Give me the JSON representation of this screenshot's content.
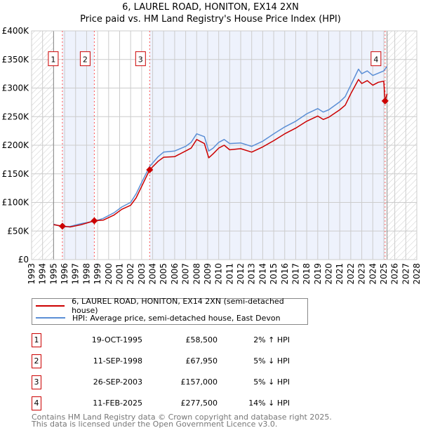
{
  "chart_data": {
    "type": "line",
    "title": "6, LAUREL ROAD, HONITON, EX14 2XN",
    "subtitle": "Price paid vs. HM Land Registry's House Price Index (HPI)",
    "xlim": [
      1993,
      2028
    ],
    "ylim": [
      0,
      400000
    ],
    "x_ticks": [
      "1993",
      "1994",
      "1995",
      "1996",
      "1997",
      "1998",
      "1999",
      "2000",
      "2001",
      "2002",
      "2003",
      "2004",
      "2005",
      "2006",
      "2007",
      "2008",
      "2009",
      "2010",
      "2011",
      "2012",
      "2013",
      "2014",
      "2015",
      "2016",
      "2017",
      "2018",
      "2019",
      "2020",
      "2021",
      "2022",
      "2023",
      "2024",
      "2025",
      "2026",
      "2027",
      "2028"
    ],
    "y_ticks": [
      {
        "v": 0,
        "label": "£0"
      },
      {
        "v": 50000,
        "label": "£50K"
      },
      {
        "v": 100000,
        "label": "£100K"
      },
      {
        "v": 150000,
        "label": "£150K"
      },
      {
        "v": 200000,
        "label": "£200K"
      },
      {
        "v": 250000,
        "label": "£250K"
      },
      {
        "v": 300000,
        "label": "£300K"
      },
      {
        "v": 350000,
        "label": "£350K"
      },
      {
        "v": 400000,
        "label": "£400K"
      }
    ],
    "grid": true,
    "data_range": [
      1995.0,
      2025.3
    ],
    "colors": {
      "price": "#cc0000",
      "hpi": "#5b8fd6",
      "band": "#eef2fc",
      "marker_line": "#ff5555"
    },
    "series": [
      {
        "name": "6, LAUREL ROAD, HONITON, EX14 2XN (semi-detached house)",
        "key": "price",
        "points": [
          [
            1995.0,
            61000
          ],
          [
            1995.8,
            58500
          ],
          [
            1996.5,
            57000
          ],
          [
            1997.5,
            61000
          ],
          [
            1998.7,
            67950
          ],
          [
            1999.5,
            69000
          ],
          [
            2000.5,
            78000
          ],
          [
            2001.2,
            88000
          ],
          [
            2002,
            95000
          ],
          [
            2002.5,
            108000
          ],
          [
            2003,
            128000
          ],
          [
            2003.73,
            157000
          ],
          [
            2004.5,
            172000
          ],
          [
            2005,
            179000
          ],
          [
            2006,
            180000
          ],
          [
            2007,
            190000
          ],
          [
            2007.5,
            195000
          ],
          [
            2008,
            210000
          ],
          [
            2008.7,
            203000
          ],
          [
            2009.1,
            178000
          ],
          [
            2009.5,
            185000
          ],
          [
            2010,
            195000
          ],
          [
            2010.5,
            200000
          ],
          [
            2011,
            192000
          ],
          [
            2012,
            194000
          ],
          [
            2013,
            188000
          ],
          [
            2014,
            197000
          ],
          [
            2015,
            208000
          ],
          [
            2016,
            220000
          ],
          [
            2017,
            230000
          ],
          [
            2018,
            242000
          ],
          [
            2019,
            251000
          ],
          [
            2019.5,
            245000
          ],
          [
            2020,
            249000
          ],
          [
            2021,
            262000
          ],
          [
            2021.5,
            270000
          ],
          [
            2022,
            290000
          ],
          [
            2022.7,
            315000
          ],
          [
            2023,
            308000
          ],
          [
            2023.5,
            313000
          ],
          [
            2024,
            305000
          ],
          [
            2024.5,
            310000
          ],
          [
            2025.0,
            312000
          ],
          [
            2025.12,
            277500
          ],
          [
            2025.3,
            290000
          ]
        ]
      },
      {
        "name": "HPI: Average price, semi-detached house, East Devon",
        "key": "hpi",
        "points": [
          [
            1995.0,
            62000
          ],
          [
            1995.8,
            57000
          ],
          [
            1996.5,
            58000
          ],
          [
            1997.5,
            63000
          ],
          [
            1998.7,
            67000
          ],
          [
            1999.5,
            72000
          ],
          [
            2000.5,
            82000
          ],
          [
            2001.2,
            92000
          ],
          [
            2002,
            100000
          ],
          [
            2002.5,
            115000
          ],
          [
            2003,
            135000
          ],
          [
            2003.73,
            163000
          ],
          [
            2004.5,
            180000
          ],
          [
            2005,
            188000
          ],
          [
            2006,
            190000
          ],
          [
            2007,
            198000
          ],
          [
            2007.5,
            205000
          ],
          [
            2008,
            220000
          ],
          [
            2008.7,
            215000
          ],
          [
            2009.1,
            190000
          ],
          [
            2009.5,
            195000
          ],
          [
            2010,
            205000
          ],
          [
            2010.5,
            210000
          ],
          [
            2011,
            203000
          ],
          [
            2012,
            204000
          ],
          [
            2013,
            198000
          ],
          [
            2014,
            207000
          ],
          [
            2015,
            220000
          ],
          [
            2016,
            232000
          ],
          [
            2017,
            242000
          ],
          [
            2018,
            255000
          ],
          [
            2019,
            264000
          ],
          [
            2019.5,
            258000
          ],
          [
            2020,
            262000
          ],
          [
            2021,
            276000
          ],
          [
            2021.5,
            285000
          ],
          [
            2022,
            305000
          ],
          [
            2022.7,
            333000
          ],
          [
            2023,
            325000
          ],
          [
            2023.5,
            330000
          ],
          [
            2024,
            322000
          ],
          [
            2024.5,
            326000
          ],
          [
            2025.0,
            330000
          ],
          [
            2025.3,
            338000
          ]
        ]
      }
    ],
    "sales": [
      {
        "n": "1",
        "x": 1995.8,
        "y": 58500
      },
      {
        "n": "2",
        "x": 1998.7,
        "y": 67950
      },
      {
        "n": "3",
        "x": 2003.73,
        "y": 157000
      },
      {
        "n": "4",
        "x": 2025.12,
        "y": 277500
      }
    ],
    "marker_label_value": 355000
  },
  "legend": {
    "price": "6, LAUREL ROAD, HONITON, EX14 2XN (semi-detached house)",
    "hpi": "HPI: Average price, semi-detached house, East Devon"
  },
  "table": [
    {
      "n": "1",
      "date": "19-OCT-1995",
      "price": "£58,500",
      "hpi": "2% ↑ HPI"
    },
    {
      "n": "2",
      "date": "11-SEP-1998",
      "price": "£67,950",
      "hpi": "5% ↓ HPI"
    },
    {
      "n": "3",
      "date": "26-SEP-2003",
      "price": "£157,000",
      "hpi": "5% ↓ HPI"
    },
    {
      "n": "4",
      "date": "11-FEB-2025",
      "price": "£277,500",
      "hpi": "14% ↓ HPI"
    }
  ],
  "footer": {
    "line1": "Contains HM Land Registry data © Crown copyright and database right 2025.",
    "line2": "This data is licensed under the Open Government Licence v3.0."
  }
}
